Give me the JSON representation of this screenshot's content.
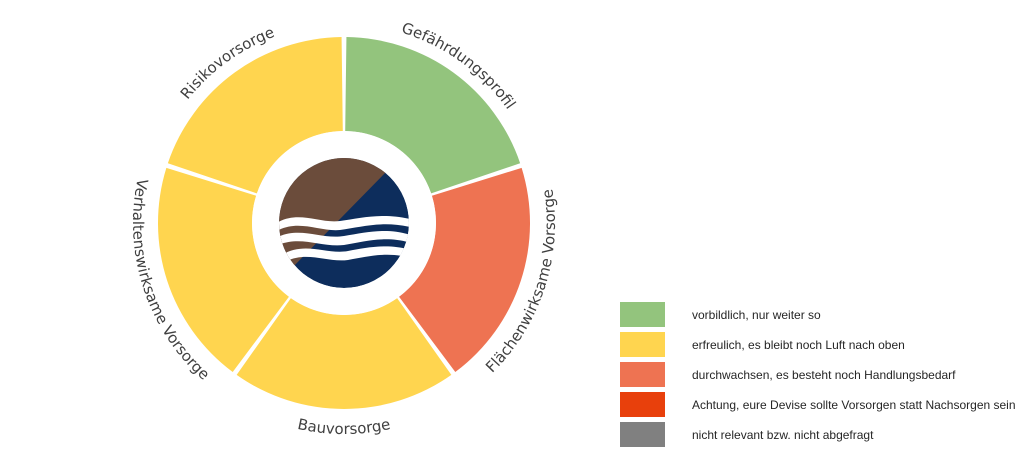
{
  "chart_data": {
    "type": "pie",
    "variant": "donut",
    "title": "",
    "segments": [
      {
        "label": "Gefährdungsprofil",
        "value": 1,
        "rating": "vorbildlich, nur weiter so",
        "color": "#93C47D"
      },
      {
        "label": "Flächenwirksame Vorsorge",
        "value": 1,
        "rating": "durchwachsen, es besteht noch Handlungsbedarf",
        "color": "#EE7352"
      },
      {
        "label": "Bauvorsorge",
        "value": 1,
        "rating": "erfreulich, es bleibt noch Luft nach oben",
        "color": "#FFD54F"
      },
      {
        "label": "Verhaltenswirksame Vorsorge",
        "value": 1,
        "rating": "erfreulich, es bleibt noch Luft nach oben",
        "color": "#FFD54F"
      },
      {
        "label": "Risikovorsorge",
        "value": 1,
        "rating": "erfreulich, es bleibt noch Luft nach oben",
        "color": "#FFD54F"
      }
    ],
    "legend": [
      {
        "label": "vorbildlich, nur weiter so",
        "color": "#93C47D"
      },
      {
        "label": "erfreulich, es bleibt noch Luft nach oben",
        "color": "#FFD54F"
      },
      {
        "label": "durchwachsen, es besteht noch Handlungsbedarf",
        "color": "#EE7352"
      },
      {
        "label": "Achtung, eure Devise sollte Vorsorgen statt Nachsorgen sein",
        "color": "#E8400C"
      },
      {
        "label": "nicht relevant bzw. nicht abgefragt",
        "color": "#808080"
      }
    ],
    "legend_position": "bottom-right"
  },
  "center_logo": {
    "icon": "water-land-logo-icon",
    "colors": {
      "land": "#6B4C3B",
      "water": "#0D2D5C",
      "waves": "#FFFFFF"
    }
  }
}
